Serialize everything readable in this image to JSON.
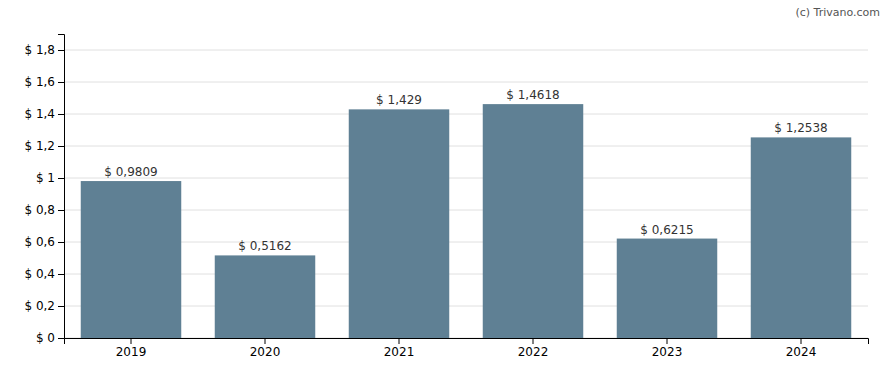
{
  "chart_data": {
    "type": "bar",
    "categories": [
      "2019",
      "2020",
      "2021",
      "2022",
      "2023",
      "2024"
    ],
    "values": [
      0.9809,
      0.5162,
      1.429,
      1.4618,
      0.6215,
      1.2538
    ],
    "value_labels": [
      "$ 0,9809",
      "$ 0,5162",
      "$ 1,429",
      "$ 1,4618",
      "$ 0,6215",
      "$ 1,2538"
    ],
    "data_labels": true,
    "color": "#5f8094",
    "ylim": [
      0,
      1.9
    ],
    "yticks": [
      {
        "value": 0.0,
        "label": "$ 0"
      },
      {
        "value": 0.2,
        "label": "$ 0,2"
      },
      {
        "value": 0.4,
        "label": "$ 0,4"
      },
      {
        "value": 0.6,
        "label": "$ 0,6"
      },
      {
        "value": 0.8,
        "label": "$ 0,8"
      },
      {
        "value": 1.0,
        "label": "$ 1"
      },
      {
        "value": 1.2,
        "label": "$ 1,2"
      },
      {
        "value": 1.4,
        "label": "$ 1,4"
      },
      {
        "value": 1.6,
        "label": "$ 1,6"
      },
      {
        "value": 1.8,
        "label": "$ 1,8"
      }
    ],
    "grid": true,
    "annotations": [
      "(c) Trivano.com"
    ]
  }
}
